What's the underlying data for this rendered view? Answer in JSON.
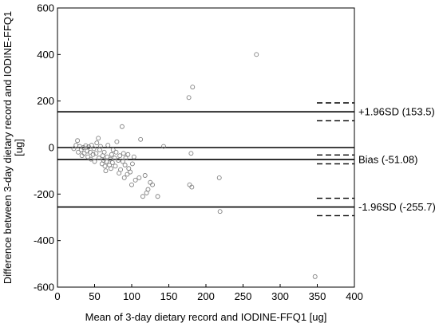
{
  "chart_data": {
    "type": "scatter",
    "title": "",
    "xlabel": "Mean of 3-day dietary record and IODINE-FFQ1 [ug]",
    "ylabel": [
      "Difference between 3-day dietary record and IODINE-FFQ1",
      "[ug]"
    ],
    "xlim": [
      0,
      400
    ],
    "ylim": [
      -600,
      600
    ],
    "x_ticks": [
      0,
      50,
      100,
      150,
      200,
      250,
      300,
      350,
      400
    ],
    "y_ticks": [
      -600,
      -400,
      -200,
      0,
      200,
      400,
      600
    ],
    "grid": false,
    "marker": "open-circle",
    "marker_color": "#808080",
    "reference_lines": [
      {
        "label": "+1.96SD (153.5)",
        "value": 153.5,
        "ci": [
          115,
          192
        ]
      },
      {
        "label": "Bias (-51.08)",
        "value": -51.08,
        "ci": [
          -70,
          -32
        ]
      },
      {
        "label": "-1.96SD (-255.7)",
        "value": -255.7,
        "ci": [
          -293,
          -218
        ]
      },
      {
        "label": "",
        "value": 0
      }
    ],
    "points": [
      [
        22,
        -5
      ],
      [
        25,
        10
      ],
      [
        27,
        30
      ],
      [
        28,
        -20
      ],
      [
        30,
        5
      ],
      [
        32,
        -10
      ],
      [
        33,
        -35
      ],
      [
        35,
        0
      ],
      [
        36,
        -25
      ],
      [
        38,
        8
      ],
      [
        40,
        -15
      ],
      [
        41,
        -40
      ],
      [
        42,
        3
      ],
      [
        44,
        -20
      ],
      [
        45,
        -50
      ],
      [
        46,
        10
      ],
      [
        48,
        -30
      ],
      [
        49,
        -5
      ],
      [
        50,
        -60
      ],
      [
        52,
        -25
      ],
      [
        53,
        20
      ],
      [
        55,
        40
      ],
      [
        56,
        -45
      ],
      [
        57,
        -10
      ],
      [
        58,
        5
      ],
      [
        60,
        -70
      ],
      [
        61,
        -35
      ],
      [
        62,
        -55
      ],
      [
        63,
        -20
      ],
      [
        64,
        -80
      ],
      [
        65,
        -100
      ],
      [
        66,
        -60
      ],
      [
        67,
        -40
      ],
      [
        68,
        10
      ],
      [
        70,
        -75
      ],
      [
        71,
        -50
      ],
      [
        72,
        -90
      ],
      [
        73,
        -30
      ],
      [
        74,
        -65
      ],
      [
        75,
        -10
      ],
      [
        77,
        -45
      ],
      [
        78,
        -80
      ],
      [
        79,
        -20
      ],
      [
        80,
        25
      ],
      [
        82,
        -55
      ],
      [
        83,
        -110
      ],
      [
        84,
        -35
      ],
      [
        85,
        -95
      ],
      [
        87,
        90
      ],
      [
        88,
        -60
      ],
      [
        89,
        -25
      ],
      [
        90,
        -130
      ],
      [
        91,
        -75
      ],
      [
        92,
        -45
      ],
      [
        94,
        -115
      ],
      [
        95,
        -30
      ],
      [
        96,
        -90
      ],
      [
        98,
        -105
      ],
      [
        100,
        -160
      ],
      [
        101,
        -70
      ],
      [
        103,
        -40
      ],
      [
        105,
        -140
      ],
      [
        110,
        -130
      ],
      [
        112,
        35
      ],
      [
        115,
        -210
      ],
      [
        118,
        -120
      ],
      [
        120,
        -195
      ],
      [
        122,
        -180
      ],
      [
        125,
        -150
      ],
      [
        128,
        -160
      ],
      [
        135,
        -210
      ],
      [
        143,
        5
      ],
      [
        177,
        215
      ],
      [
        178,
        -160
      ],
      [
        180,
        -25
      ],
      [
        181,
        -170
      ],
      [
        182,
        260
      ],
      [
        218,
        -130
      ],
      [
        219,
        -275
      ],
      [
        268,
        400
      ],
      [
        347,
        -555
      ]
    ]
  }
}
